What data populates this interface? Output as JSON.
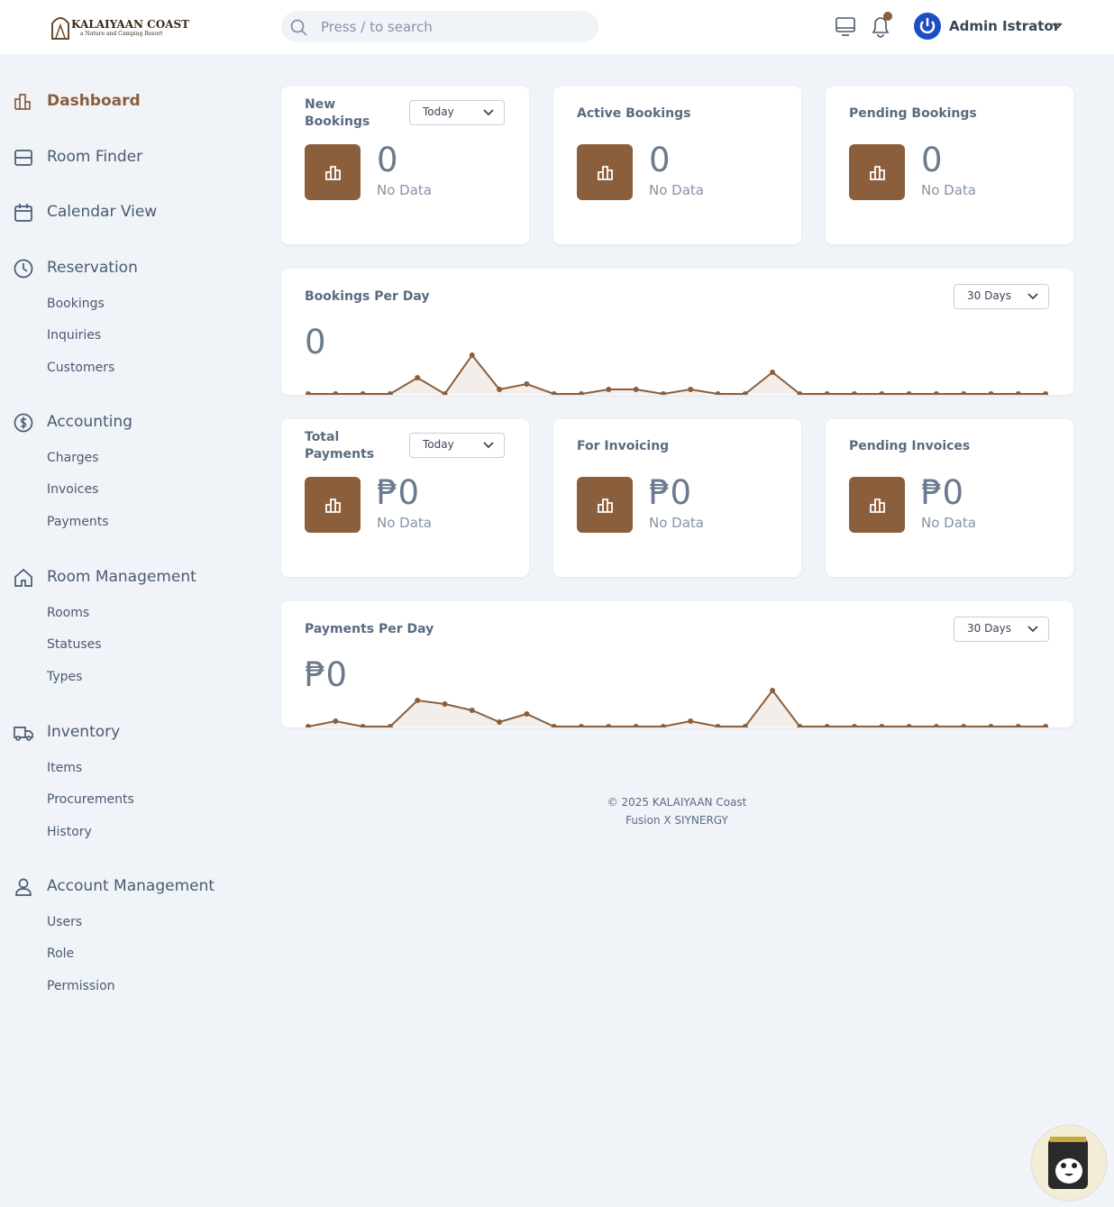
{
  "header": {
    "logo_title": "KALAIYAAN COAST",
    "logo_subtitle": "a Nature and Camping Resort",
    "search_placeholder": "Press / to search",
    "user": "Admin Istrator"
  },
  "sidebar": {
    "items": [
      {
        "label": "Dashboard",
        "active": true
      },
      {
        "label": "Room Finder"
      },
      {
        "label": "Calendar View"
      },
      {
        "label": "Reservation",
        "children": [
          "Bookings",
          "Inquiries",
          "Customers"
        ]
      },
      {
        "label": "Accounting",
        "children": [
          "Charges",
          "Invoices",
          "Payments"
        ]
      },
      {
        "label": "Room Management",
        "children": [
          "Rooms",
          "Statuses",
          "Types"
        ]
      },
      {
        "label": "Inventory",
        "children": [
          "Items",
          "Procurements",
          "History"
        ]
      },
      {
        "label": "Account Management",
        "children": [
          "Users",
          "Role",
          "Permission"
        ]
      }
    ]
  },
  "rows": [
    {
      "cards": [
        {
          "title": "New Bookings",
          "filter": "Today",
          "value": "0",
          "note": "No Data"
        },
        {
          "title": "Active Bookings",
          "value": "0",
          "note": "No Data"
        },
        {
          "title": "Pending Bookings",
          "value": "0",
          "note": "No Data"
        }
      ],
      "chart": {
        "title": "Bookings Per Day",
        "range": "30 Days",
        "value": "0",
        "values": [
          0,
          0,
          0,
          0,
          18,
          0,
          43,
          5,
          11,
          0,
          0,
          5,
          5,
          0,
          5,
          0,
          0,
          24,
          0,
          0,
          0,
          0,
          0,
          0,
          0,
          0,
          0,
          0
        ]
      }
    },
    {
      "cards": [
        {
          "title": "Total Payments",
          "filter": "Today",
          "value": "₱0",
          "note": "No Data"
        },
        {
          "title": "For Invoicing",
          "value": "₱0",
          "note": "No Data"
        },
        {
          "title": "Pending Invoices",
          "value": "₱0",
          "note": "No Data"
        }
      ],
      "chart": {
        "title": "Payments Per Day",
        "range": "30 Days",
        "value": "₱0",
        "values": [
          0,
          6,
          0,
          0,
          29,
          25,
          18,
          5,
          14,
          0,
          0,
          0,
          0,
          0,
          6,
          0,
          0,
          40,
          0,
          0,
          0,
          0,
          0,
          0,
          0,
          0,
          0,
          0
        ]
      }
    }
  ],
  "footer": {
    "copyright": "© 2025 KALAIYAAN Coast",
    "credit": "Fusion X SIYNERGY"
  }
}
